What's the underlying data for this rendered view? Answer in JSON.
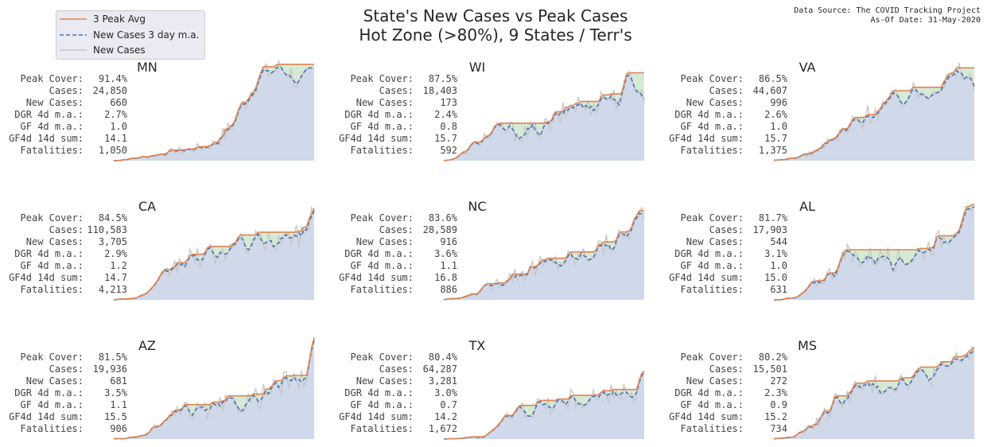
{
  "header": {
    "title_line1": "State's New Cases vs Peak Cases",
    "title_line2": "Hot Zone (>80%), 9 States / Terr's",
    "source_line1": "Data Source: The COVID Tracking Project",
    "source_line2": "As-Of Date: 31-May-2020"
  },
  "legend": {
    "items": [
      {
        "label": "3 Peak Avg",
        "color": "#dd8452",
        "style": "solid"
      },
      {
        "label": "New Cases 3 day m.a.",
        "color": "#4c72b0",
        "style": "dashed"
      },
      {
        "label": "New Cases",
        "color": "#c8c8c8",
        "style": "solid"
      }
    ]
  },
  "stat_labels": [
    "Peak Cover:",
    "Cases:",
    "New Cases:",
    "DGR 4d m.a.:",
    "GF 4d m.a.:",
    "GF4d 14d sum:",
    "Fatalities:"
  ],
  "colors": {
    "peak": "#dd8452",
    "ma": "#4c72b0",
    "raw": "#c8c8c8",
    "fill_under": "#d0d9ea",
    "fill_gap": "#d5ead5"
  },
  "chart_data": {
    "type": "line",
    "panels": [
      {
        "state": "MN",
        "stats": [
          "91.4%",
          "24,850",
          "660",
          "2.7%",
          "1.0",
          "14.1",
          "1,050"
        ],
        "shape": [
          [
            0,
            0.0
          ],
          [
            0.1,
            0.02
          ],
          [
            0.2,
            0.05
          ],
          [
            0.3,
            0.09
          ],
          [
            0.4,
            0.11
          ],
          [
            0.5,
            0.16
          ],
          [
            0.58,
            0.3
          ],
          [
            0.65,
            0.55
          ],
          [
            0.72,
            0.78
          ],
          [
            0.78,
            0.85
          ],
          [
            0.84,
            0.88
          ],
          [
            0.88,
            0.84
          ],
          [
            0.93,
            0.7
          ],
          [
            0.97,
            0.8
          ],
          [
            1.0,
            0.85
          ]
        ]
      },
      {
        "state": "WI",
        "stats": [
          "87.5%",
          "18,403",
          "173",
          "2.4%",
          "0.8",
          "15.7",
          "592"
        ],
        "shape": [
          [
            0,
            0.0
          ],
          [
            0.06,
            0.02
          ],
          [
            0.12,
            0.1
          ],
          [
            0.2,
            0.22
          ],
          [
            0.3,
            0.3
          ],
          [
            0.4,
            0.26
          ],
          [
            0.5,
            0.3
          ],
          [
            0.58,
            0.42
          ],
          [
            0.65,
            0.55
          ],
          [
            0.72,
            0.5
          ],
          [
            0.8,
            0.62
          ],
          [
            0.88,
            0.58
          ],
          [
            0.93,
            0.8
          ],
          [
            0.97,
            0.72
          ],
          [
            1.0,
            0.55
          ]
        ]
      },
      {
        "state": "VA",
        "stats": [
          "86.5%",
          "44,607",
          "996",
          "2.6%",
          "1.0",
          "15.7",
          "1,375"
        ],
        "shape": [
          [
            0,
            0.0
          ],
          [
            0.12,
            0.03
          ],
          [
            0.2,
            0.08
          ],
          [
            0.3,
            0.2
          ],
          [
            0.4,
            0.35
          ],
          [
            0.5,
            0.48
          ],
          [
            0.58,
            0.55
          ],
          [
            0.66,
            0.62
          ],
          [
            0.74,
            0.66
          ],
          [
            0.82,
            0.72
          ],
          [
            0.88,
            0.76
          ],
          [
            0.93,
            0.85
          ],
          [
            0.97,
            0.8
          ],
          [
            1.0,
            0.7
          ]
        ]
      },
      {
        "state": "CA",
        "stats": [
          "84.5%",
          "110,583",
          "3,705",
          "2.9%",
          "1.2",
          "14.7",
          "4,213"
        ],
        "shape": [
          [
            0,
            0.0
          ],
          [
            0.12,
            0.02
          ],
          [
            0.2,
            0.1
          ],
          [
            0.28,
            0.28
          ],
          [
            0.36,
            0.38
          ],
          [
            0.44,
            0.4
          ],
          [
            0.52,
            0.44
          ],
          [
            0.6,
            0.5
          ],
          [
            0.68,
            0.55
          ],
          [
            0.76,
            0.55
          ],
          [
            0.84,
            0.58
          ],
          [
            0.9,
            0.6
          ],
          [
            0.95,
            0.62
          ],
          [
            1.0,
            0.9
          ]
        ]
      },
      {
        "state": "NC",
        "stats": [
          "83.6%",
          "28,589",
          "916",
          "3.6%",
          "1.1",
          "16.8",
          "886"
        ],
        "shape": [
          [
            0,
            0.0
          ],
          [
            0.1,
            0.02
          ],
          [
            0.2,
            0.1
          ],
          [
            0.3,
            0.2
          ],
          [
            0.4,
            0.28
          ],
          [
            0.5,
            0.33
          ],
          [
            0.6,
            0.38
          ],
          [
            0.7,
            0.42
          ],
          [
            0.78,
            0.5
          ],
          [
            0.85,
            0.55
          ],
          [
            0.9,
            0.62
          ],
          [
            0.95,
            0.7
          ],
          [
            1.0,
            0.88
          ]
        ]
      },
      {
        "state": "AL",
        "stats": [
          "81.7%",
          "17,903",
          "544",
          "3.1%",
          "1.0",
          "15.0",
          "631"
        ],
        "shape": [
          [
            0,
            0.0
          ],
          [
            0.12,
            0.02
          ],
          [
            0.2,
            0.15
          ],
          [
            0.28,
            0.25
          ],
          [
            0.36,
            0.42
          ],
          [
            0.44,
            0.4
          ],
          [
            0.52,
            0.42
          ],
          [
            0.6,
            0.38
          ],
          [
            0.68,
            0.4
          ],
          [
            0.76,
            0.5
          ],
          [
            0.84,
            0.58
          ],
          [
            0.9,
            0.68
          ],
          [
            0.95,
            0.75
          ],
          [
            1.0,
            0.82
          ]
        ]
      },
      {
        "state": "AZ",
        "stats": [
          "81.5%",
          "19,936",
          "681",
          "3.5%",
          "1.1",
          "15.5",
          "906"
        ],
        "shape": [
          [
            0,
            0.0
          ],
          [
            0.14,
            0.02
          ],
          [
            0.22,
            0.12
          ],
          [
            0.3,
            0.22
          ],
          [
            0.38,
            0.28
          ],
          [
            0.46,
            0.26
          ],
          [
            0.54,
            0.3
          ],
          [
            0.62,
            0.34
          ],
          [
            0.7,
            0.38
          ],
          [
            0.78,
            0.45
          ],
          [
            0.86,
            0.55
          ],
          [
            0.92,
            0.52
          ],
          [
            0.96,
            0.62
          ],
          [
            1.0,
            0.92
          ]
        ]
      },
      {
        "state": "TX",
        "stats": [
          "80.4%",
          "64,287",
          "3,281",
          "3.0%",
          "0.7",
          "14.2",
          "1,672"
        ],
        "shape": [
          [
            0,
            0.0
          ],
          [
            0.2,
            0.02
          ],
          [
            0.28,
            0.15
          ],
          [
            0.36,
            0.25
          ],
          [
            0.44,
            0.3
          ],
          [
            0.52,
            0.32
          ],
          [
            0.6,
            0.36
          ],
          [
            0.7,
            0.38
          ],
          [
            0.8,
            0.4
          ],
          [
            0.86,
            0.42
          ],
          [
            0.9,
            0.48
          ],
          [
            0.95,
            0.4
          ],
          [
            1.0,
            0.62
          ]
        ]
      },
      {
        "state": "MS",
        "stats": [
          "80.2%",
          "15,501",
          "272",
          "2.3%",
          "0.9",
          "15.2",
          "734"
        ],
        "shape": [
          [
            0,
            0.0
          ],
          [
            0.1,
            0.02
          ],
          [
            0.18,
            0.1
          ],
          [
            0.26,
            0.25
          ],
          [
            0.34,
            0.4
          ],
          [
            0.42,
            0.48
          ],
          [
            0.5,
            0.5
          ],
          [
            0.58,
            0.52
          ],
          [
            0.66,
            0.58
          ],
          [
            0.74,
            0.6
          ],
          [
            0.82,
            0.62
          ],
          [
            0.88,
            0.7
          ],
          [
            0.94,
            0.78
          ],
          [
            1.0,
            0.85
          ]
        ]
      }
    ]
  }
}
